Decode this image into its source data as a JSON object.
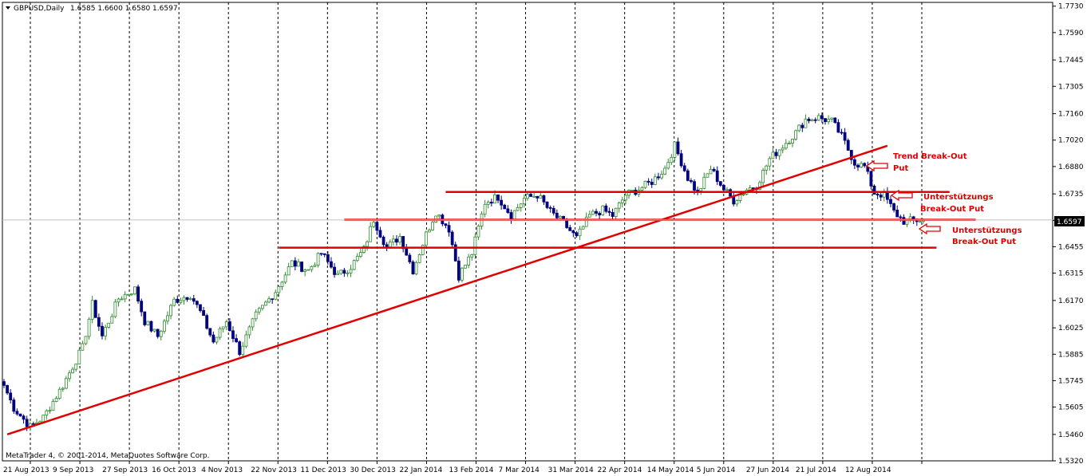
{
  "header": {
    "symbol": "GBPUSD,Daily",
    "ohlc": "1.6585 1.6600 1.6580 1.6597",
    "footer": "MetaTrader 4, © 2001-2014, MetaQuotes Software Corp."
  },
  "colors": {
    "bull": "#2e8b2e",
    "bear": "#000080",
    "annotation": "#e00000",
    "grid": "#000000",
    "price_tag_bg": "#000000",
    "price_tag_fg": "#ffffff"
  },
  "chart_data": {
    "type": "candlestick",
    "symbol": "GBPUSD",
    "timeframe": "Daily",
    "last_price": "1.6597",
    "ylim": [
      1.532,
      1.775
    ],
    "y_ticks": [
      "1.7730",
      "1.7590",
      "1.7445",
      "1.7305",
      "1.7160",
      "1.7020",
      "1.6880",
      "1.6735",
      "1.6595",
      "1.6455",
      "1.6315",
      "1.6170",
      "1.6025",
      "1.5885",
      "1.5745",
      "1.5605",
      "1.5460",
      "1.5320"
    ],
    "x_ticks": [
      "21 Aug 2013",
      "9 Sep 2013",
      "27 Sep 2013",
      "16 Oct 2013",
      "4 Nov 2013",
      "22 Nov 2013",
      "11 Dec 2013",
      "30 Dec 2013",
      "22 Jan 2014",
      "13 Feb 2014",
      "7 Mar 2014",
      "31 Mar 2014",
      "22 Apr 2014",
      "14 May 2014",
      "5 Jun 2014",
      "27 Jun 2014",
      "21 Jul 2014",
      "12 Aug 2014"
    ],
    "close_anchors": [
      [
        0,
        1.572
      ],
      [
        3,
        1.56
      ],
      [
        8,
        1.55
      ],
      [
        12,
        1.555
      ],
      [
        18,
        1.572
      ],
      [
        24,
        1.592
      ],
      [
        27,
        1.615
      ],
      [
        30,
        1.598
      ],
      [
        35,
        1.618
      ],
      [
        40,
        1.623
      ],
      [
        43,
        1.606
      ],
      [
        47,
        1.598
      ],
      [
        52,
        1.617
      ],
      [
        57,
        1.62
      ],
      [
        60,
        1.611
      ],
      [
        64,
        1.595
      ],
      [
        68,
        1.606
      ],
      [
        72,
        1.59
      ],
      [
        77,
        1.609
      ],
      [
        83,
        1.622
      ],
      [
        88,
        1.637
      ],
      [
        93,
        1.633
      ],
      [
        97,
        1.642
      ],
      [
        102,
        1.63
      ],
      [
        106,
        1.635
      ],
      [
        110,
        1.644
      ],
      [
        113,
        1.66
      ],
      [
        117,
        1.645
      ],
      [
        121,
        1.651
      ],
      [
        125,
        1.633
      ],
      [
        129,
        1.652
      ],
      [
        132,
        1.664
      ],
      [
        136,
        1.655
      ],
      [
        139,
        1.63
      ],
      [
        143,
        1.642
      ],
      [
        147,
        1.669
      ],
      [
        151,
        1.672
      ],
      [
        155,
        1.662
      ],
      [
        159,
        1.671
      ],
      [
        163,
        1.673
      ],
      [
        167,
        1.664
      ],
      [
        171,
        1.658
      ],
      [
        175,
        1.65
      ],
      [
        179,
        1.662
      ],
      [
        183,
        1.665
      ],
      [
        186,
        1.662
      ],
      [
        190,
        1.673
      ],
      [
        194,
        1.676
      ],
      [
        198,
        1.68
      ],
      [
        202,
        1.687
      ],
      [
        205,
        1.699
      ],
      [
        209,
        1.682
      ],
      [
        212,
        1.674
      ],
      [
        216,
        1.687
      ],
      [
        220,
        1.676
      ],
      [
        223,
        1.67
      ],
      [
        227,
        1.676
      ],
      [
        230,
        1.678
      ],
      [
        234,
        1.692
      ],
      [
        238,
        1.699
      ],
      [
        242,
        1.706
      ],
      [
        245,
        1.713
      ],
      [
        249,
        1.714
      ],
      [
        253,
        1.712
      ],
      [
        256,
        1.704
      ],
      [
        260,
        1.69
      ],
      [
        263,
        1.688
      ],
      [
        266,
        1.674
      ],
      [
        269,
        1.673
      ],
      [
        272,
        1.664
      ],
      [
        275,
        1.659
      ],
      [
        280,
        1.6597
      ]
    ],
    "trendline": [
      [
        1,
        1.546
      ],
      [
        270,
        1.699
      ]
    ],
    "horizontal_lines": [
      {
        "price": 1.6745,
        "x_from": 135,
        "x_to": 289
      },
      {
        "price": 1.6598,
        "x_from": 104,
        "x_to": 297
      },
      {
        "price": 1.645,
        "x_from": 84,
        "x_to": 285
      }
    ]
  },
  "annotations": [
    {
      "line1": "Trend Break-Out",
      "line2": "Put"
    },
    {
      "line1": "Unterstützungs",
      "line2": "Break-Out Put"
    },
    {
      "line1": "Unterstützungs",
      "line2": "Break-Out Put"
    }
  ]
}
